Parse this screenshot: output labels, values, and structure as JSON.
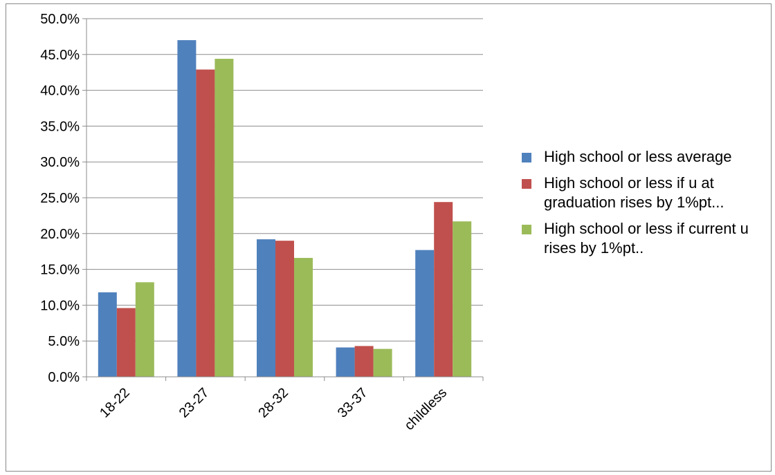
{
  "chart_data": {
    "type": "bar",
    "categories": [
      "18-22",
      "23-27",
      "28-32",
      "33-37",
      "childless"
    ],
    "series": [
      {
        "name": "High school or less average",
        "color": "#4F81BD",
        "values": [
          11.8,
          47.0,
          19.2,
          4.1,
          17.7
        ]
      },
      {
        "name": "High school or less if u at graduation rises by 1%pt...",
        "color": "#C0504D",
        "values": [
          9.6,
          42.9,
          19.0,
          4.3,
          24.4
        ]
      },
      {
        "name": "High school or less if current u rises by 1%pt..",
        "color": "#9BBB59",
        "values": [
          13.2,
          44.4,
          16.6,
          3.9,
          21.7
        ]
      }
    ],
    "ylim": [
      0,
      50
    ],
    "yticks": [
      "0.0%",
      "5.0%",
      "10.0%",
      "15.0%",
      "20.0%",
      "25.0%",
      "30.0%",
      "35.0%",
      "40.0%",
      "45.0%",
      "50.0%"
    ],
    "grid": true,
    "legend_position": "right"
  },
  "legend": {
    "items": [
      {
        "label": "High school or less average"
      },
      {
        "label": "High school or less if u at graduation rises by 1%pt..."
      },
      {
        "label": "High school or less if current u rises by 1%pt.."
      }
    ]
  }
}
